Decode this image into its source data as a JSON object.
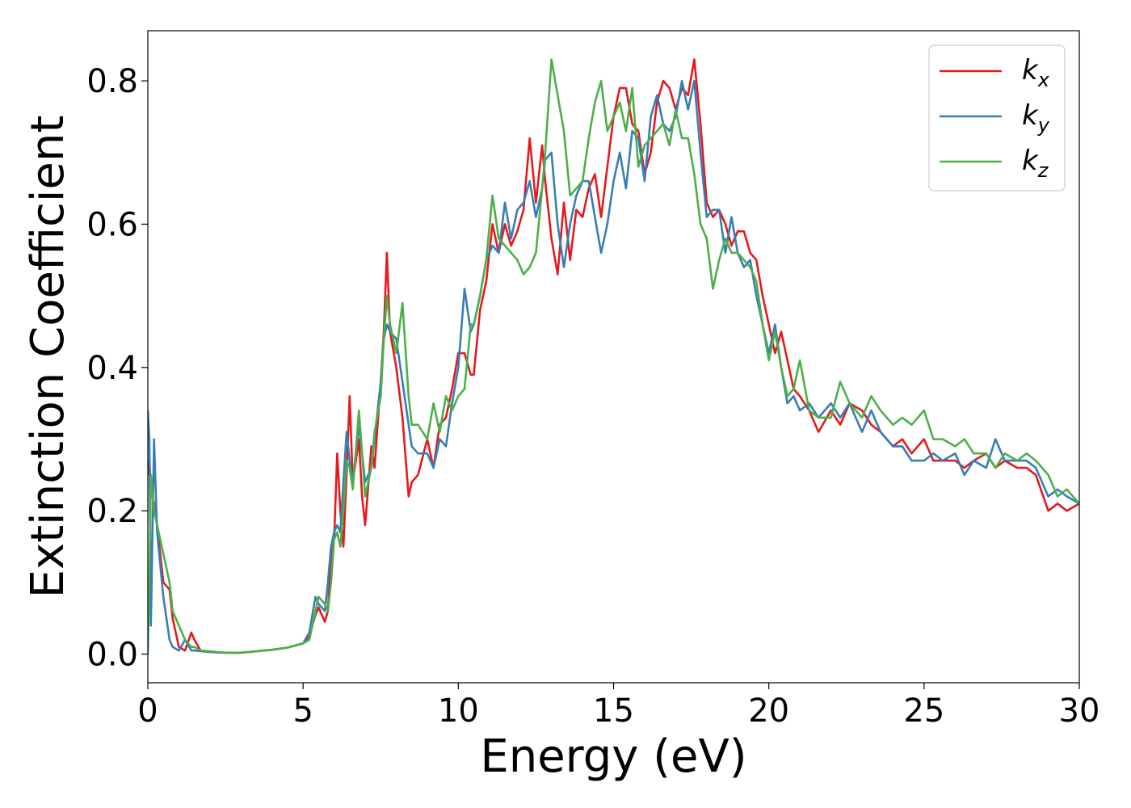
{
  "chart_data": {
    "type": "line",
    "xlabel": "Energy (eV)",
    "ylabel": "Extinction Coefficient",
    "xlim": [
      0,
      30
    ],
    "ylim": [
      -0.04,
      0.87
    ],
    "xticks": [
      0,
      5,
      10,
      15,
      20,
      25,
      30
    ],
    "xtick_labels": [
      "0",
      "5",
      "10",
      "15",
      "20",
      "25",
      "30"
    ],
    "yticks": [
      0.0,
      0.2,
      0.4,
      0.6,
      0.8
    ],
    "ytick_labels": [
      "0.0",
      "0.2",
      "0.4",
      "0.6",
      "0.8"
    ],
    "grid": false,
    "legend_position": "top-right",
    "series": [
      {
        "name": "kx",
        "label_base": "k",
        "label_sub": "x",
        "color": "#e41a1c",
        "x": [
          0,
          0.05,
          0.1,
          0.2,
          0.3,
          0.5,
          0.7,
          0.8,
          1.0,
          1.2,
          1.4,
          1.5,
          1.7,
          2.0,
          2.5,
          3.0,
          3.5,
          4.0,
          4.5,
          5.0,
          5.2,
          5.4,
          5.5,
          5.7,
          5.8,
          5.9,
          6.0,
          6.1,
          6.2,
          6.3,
          6.4,
          6.5,
          6.6,
          6.8,
          6.9,
          7.0,
          7.2,
          7.3,
          7.5,
          7.6,
          7.7,
          7.8,
          8.0,
          8.2,
          8.4,
          8.5,
          8.7,
          9.0,
          9.2,
          9.4,
          9.6,
          9.8,
          10.0,
          10.2,
          10.4,
          10.5,
          10.7,
          10.9,
          11.1,
          11.3,
          11.5,
          11.7,
          11.9,
          12.1,
          12.3,
          12.5,
          12.7,
          12.8,
          13.0,
          13.2,
          13.4,
          13.6,
          13.8,
          14.0,
          14.2,
          14.4,
          14.6,
          14.8,
          15.0,
          15.2,
          15.4,
          15.6,
          15.8,
          16.0,
          16.2,
          16.4,
          16.6,
          16.8,
          17.0,
          17.2,
          17.4,
          17.6,
          17.8,
          18.0,
          18.2,
          18.4,
          18.6,
          18.8,
          19.0,
          19.2,
          19.4,
          19.6,
          19.8,
          20.0,
          20.2,
          20.4,
          20.6,
          20.8,
          21.0,
          21.3,
          21.6,
          22.0,
          22.3,
          22.6,
          23.0,
          23.3,
          23.6,
          24.0,
          24.3,
          24.6,
          25.0,
          25.3,
          25.6,
          26.0,
          26.3,
          26.6,
          27.0,
          27.3,
          27.6,
          28.0,
          28.3,
          28.6,
          29.0,
          29.3,
          29.6,
          30.0
        ],
        "y": [
          0.25,
          0.27,
          0.23,
          0.21,
          0.18,
          0.1,
          0.09,
          0.05,
          0.01,
          0.005,
          0.03,
          0.02,
          0.005,
          0.003,
          0.002,
          0.002,
          0.004,
          0.006,
          0.009,
          0.015,
          0.025,
          0.055,
          0.065,
          0.045,
          0.06,
          0.14,
          0.16,
          0.28,
          0.2,
          0.15,
          0.25,
          0.36,
          0.24,
          0.3,
          0.22,
          0.18,
          0.29,
          0.26,
          0.38,
          0.45,
          0.56,
          0.45,
          0.4,
          0.33,
          0.22,
          0.24,
          0.25,
          0.3,
          0.26,
          0.32,
          0.33,
          0.37,
          0.42,
          0.42,
          0.39,
          0.39,
          0.48,
          0.52,
          0.6,
          0.56,
          0.6,
          0.57,
          0.59,
          0.62,
          0.72,
          0.63,
          0.71,
          0.66,
          0.58,
          0.53,
          0.63,
          0.55,
          0.62,
          0.61,
          0.65,
          0.67,
          0.61,
          0.68,
          0.75,
          0.79,
          0.79,
          0.74,
          0.73,
          0.67,
          0.7,
          0.77,
          0.8,
          0.79,
          0.76,
          0.79,
          0.78,
          0.83,
          0.74,
          0.63,
          0.61,
          0.62,
          0.6,
          0.57,
          0.59,
          0.59,
          0.56,
          0.55,
          0.5,
          0.46,
          0.42,
          0.45,
          0.41,
          0.37,
          0.36,
          0.34,
          0.31,
          0.34,
          0.32,
          0.35,
          0.34,
          0.32,
          0.31,
          0.29,
          0.3,
          0.28,
          0.3,
          0.27,
          0.27,
          0.27,
          0.26,
          0.27,
          0.28,
          0.26,
          0.27,
          0.26,
          0.26,
          0.25,
          0.2,
          0.21,
          0.2,
          0.21
        ]
      },
      {
        "name": "ky",
        "label_base": "k",
        "label_sub": "y",
        "color": "#377eb8",
        "x": [
          0,
          0.05,
          0.1,
          0.2,
          0.3,
          0.5,
          0.7,
          0.8,
          1.0,
          1.2,
          1.4,
          1.5,
          1.7,
          2.0,
          2.5,
          3.0,
          3.5,
          4.0,
          4.5,
          5.0,
          5.2,
          5.4,
          5.5,
          5.7,
          5.8,
          5.9,
          6.0,
          6.1,
          6.2,
          6.3,
          6.4,
          6.5,
          6.6,
          6.8,
          6.9,
          7.0,
          7.2,
          7.3,
          7.5,
          7.6,
          7.7,
          7.8,
          8.0,
          8.2,
          8.4,
          8.5,
          8.7,
          9.0,
          9.2,
          9.4,
          9.6,
          9.8,
          10.0,
          10.2,
          10.4,
          10.5,
          10.7,
          10.9,
          11.1,
          11.3,
          11.5,
          11.7,
          11.9,
          12.1,
          12.3,
          12.5,
          12.7,
          12.8,
          13.0,
          13.2,
          13.4,
          13.6,
          13.8,
          14.0,
          14.2,
          14.4,
          14.6,
          14.8,
          15.0,
          15.2,
          15.4,
          15.6,
          15.8,
          16.0,
          16.2,
          16.4,
          16.6,
          16.8,
          17.0,
          17.2,
          17.4,
          17.6,
          17.8,
          18.0,
          18.2,
          18.4,
          18.6,
          18.8,
          19.0,
          19.2,
          19.4,
          19.6,
          19.8,
          20.0,
          20.2,
          20.4,
          20.6,
          20.8,
          21.0,
          21.3,
          21.6,
          22.0,
          22.3,
          22.6,
          23.0,
          23.3,
          23.6,
          24.0,
          24.3,
          24.6,
          25.0,
          25.3,
          25.6,
          26.0,
          26.3,
          26.6,
          27.0,
          27.3,
          27.6,
          28.0,
          28.3,
          28.6,
          29.0,
          29.3,
          29.6,
          30.0
        ],
        "y": [
          0.34,
          0.3,
          0.04,
          0.3,
          0.17,
          0.08,
          0.02,
          0.01,
          0.005,
          0.02,
          0.005,
          0.005,
          0.004,
          0.003,
          0.002,
          0.002,
          0.004,
          0.006,
          0.009,
          0.015,
          0.03,
          0.08,
          0.07,
          0.06,
          0.1,
          0.15,
          0.17,
          0.18,
          0.17,
          0.24,
          0.31,
          0.27,
          0.24,
          0.32,
          0.28,
          0.24,
          0.26,
          0.3,
          0.38,
          0.44,
          0.46,
          0.45,
          0.44,
          0.38,
          0.32,
          0.29,
          0.28,
          0.28,
          0.26,
          0.3,
          0.29,
          0.35,
          0.4,
          0.51,
          0.45,
          0.46,
          0.5,
          0.55,
          0.57,
          0.56,
          0.63,
          0.58,
          0.62,
          0.63,
          0.66,
          0.61,
          0.65,
          0.69,
          0.7,
          0.6,
          0.54,
          0.6,
          0.64,
          0.66,
          0.66,
          0.61,
          0.56,
          0.6,
          0.66,
          0.7,
          0.65,
          0.73,
          0.72,
          0.66,
          0.75,
          0.78,
          0.74,
          0.73,
          0.75,
          0.8,
          0.76,
          0.8,
          0.7,
          0.61,
          0.62,
          0.62,
          0.56,
          0.61,
          0.56,
          0.54,
          0.55,
          0.5,
          0.46,
          0.42,
          0.46,
          0.4,
          0.35,
          0.36,
          0.34,
          0.35,
          0.33,
          0.35,
          0.33,
          0.35,
          0.31,
          0.34,
          0.31,
          0.29,
          0.29,
          0.27,
          0.27,
          0.28,
          0.27,
          0.28,
          0.25,
          0.27,
          0.26,
          0.3,
          0.27,
          0.27,
          0.27,
          0.26,
          0.22,
          0.23,
          0.22,
          0.21
        ]
      },
      {
        "name": "kz",
        "label_base": "k",
        "label_sub": "z",
        "color": "#4daf4a",
        "x": [
          0,
          0.05,
          0.1,
          0.2,
          0.3,
          0.5,
          0.7,
          0.8,
          1.0,
          1.2,
          1.4,
          1.5,
          1.7,
          2.0,
          2.5,
          3.0,
          3.5,
          4.0,
          4.5,
          5.0,
          5.2,
          5.4,
          5.5,
          5.7,
          5.8,
          5.9,
          6.0,
          6.1,
          6.2,
          6.3,
          6.4,
          6.5,
          6.6,
          6.8,
          6.9,
          7.0,
          7.2,
          7.3,
          7.5,
          7.6,
          7.7,
          7.8,
          8.0,
          8.2,
          8.4,
          8.5,
          8.7,
          9.0,
          9.2,
          9.4,
          9.6,
          9.8,
          10.0,
          10.2,
          10.4,
          10.5,
          10.7,
          10.9,
          11.1,
          11.3,
          11.5,
          11.7,
          11.9,
          12.1,
          12.3,
          12.5,
          12.7,
          12.8,
          13.0,
          13.2,
          13.4,
          13.6,
          13.8,
          14.0,
          14.2,
          14.4,
          14.6,
          14.8,
          15.0,
          15.2,
          15.4,
          15.6,
          15.8,
          16.0,
          16.2,
          16.4,
          16.6,
          16.8,
          17.0,
          17.2,
          17.4,
          17.6,
          17.8,
          18.0,
          18.2,
          18.4,
          18.6,
          18.8,
          19.0,
          19.2,
          19.4,
          19.6,
          19.8,
          20.0,
          20.2,
          20.4,
          20.6,
          20.8,
          21.0,
          21.3,
          21.6,
          22.0,
          22.3,
          22.6,
          23.0,
          23.3,
          23.6,
          24.0,
          24.3,
          24.6,
          25.0,
          25.3,
          25.6,
          26.0,
          26.3,
          26.6,
          27.0,
          27.3,
          27.6,
          28.0,
          28.3,
          28.6,
          29.0,
          29.3,
          29.6,
          30.0
        ],
        "y": [
          0.0,
          0.1,
          0.25,
          0.2,
          0.18,
          0.14,
          0.1,
          0.06,
          0.04,
          0.02,
          0.01,
          0.01,
          0.005,
          0.004,
          0.002,
          0.002,
          0.004,
          0.006,
          0.009,
          0.015,
          0.02,
          0.06,
          0.08,
          0.07,
          0.06,
          0.1,
          0.16,
          0.17,
          0.15,
          0.2,
          0.27,
          0.26,
          0.23,
          0.34,
          0.28,
          0.22,
          0.26,
          0.31,
          0.36,
          0.44,
          0.5,
          0.46,
          0.42,
          0.49,
          0.36,
          0.32,
          0.32,
          0.3,
          0.35,
          0.31,
          0.36,
          0.34,
          0.36,
          0.37,
          0.46,
          0.46,
          0.5,
          0.55,
          0.64,
          0.58,
          0.57,
          0.56,
          0.55,
          0.53,
          0.54,
          0.56,
          0.65,
          0.7,
          0.83,
          0.78,
          0.73,
          0.64,
          0.65,
          0.66,
          0.72,
          0.77,
          0.8,
          0.73,
          0.75,
          0.77,
          0.73,
          0.79,
          0.68,
          0.71,
          0.72,
          0.73,
          0.74,
          0.71,
          0.76,
          0.72,
          0.72,
          0.67,
          0.6,
          0.58,
          0.51,
          0.55,
          0.58,
          0.56,
          0.56,
          0.55,
          0.54,
          0.52,
          0.46,
          0.41,
          0.45,
          0.4,
          0.36,
          0.37,
          0.41,
          0.34,
          0.33,
          0.33,
          0.38,
          0.35,
          0.33,
          0.36,
          0.34,
          0.32,
          0.33,
          0.32,
          0.34,
          0.3,
          0.3,
          0.29,
          0.3,
          0.28,
          0.28,
          0.26,
          0.28,
          0.27,
          0.28,
          0.27,
          0.25,
          0.22,
          0.23,
          0.21
        ]
      }
    ]
  }
}
